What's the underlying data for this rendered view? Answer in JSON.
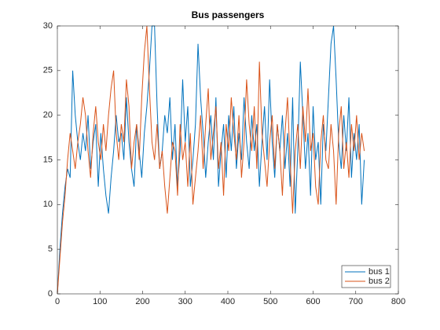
{
  "chart_data": {
    "type": "line",
    "title": "Bus passengers",
    "x": [
      0,
      6,
      12,
      18,
      24,
      30,
      36,
      42,
      48,
      54,
      60,
      66,
      72,
      78,
      84,
      90,
      96,
      102,
      108,
      114,
      120,
      126,
      132,
      138,
      144,
      150,
      156,
      162,
      168,
      174,
      180,
      186,
      192,
      198,
      204,
      210,
      216,
      222,
      228,
      234,
      240,
      246,
      252,
      258,
      264,
      270,
      276,
      282,
      288,
      294,
      300,
      306,
      312,
      318,
      324,
      330,
      336,
      342,
      348,
      354,
      360,
      366,
      372,
      378,
      384,
      390,
      396,
      402,
      408,
      414,
      420,
      426,
      432,
      438,
      444,
      450,
      456,
      462,
      468,
      474,
      480,
      486,
      492,
      498,
      504,
      510,
      516,
      522,
      528,
      534,
      540,
      546,
      552,
      558,
      564,
      570,
      576,
      582,
      588,
      594,
      600,
      606,
      612,
      618,
      624,
      630,
      636,
      642,
      648,
      654,
      660,
      666,
      672,
      678,
      684,
      690,
      696,
      702,
      708,
      714,
      720
    ],
    "series": [
      {
        "name": "bus 1",
        "color": "#0072bd",
        "values": [
          0,
          5,
          9,
          12,
          14,
          13,
          25,
          20,
          17,
          15,
          18,
          16,
          20,
          14,
          17,
          19,
          12,
          18,
          14,
          11,
          9,
          13,
          16,
          20,
          17,
          18,
          15,
          22,
          17,
          14,
          12,
          19,
          16,
          13,
          18,
          21,
          25,
          30,
          30,
          21,
          14,
          16,
          20,
          18,
          22,
          15,
          19,
          12,
          16,
          24,
          17,
          21,
          12,
          15,
          19,
          28,
          22,
          18,
          13,
          17,
          20,
          15,
          22,
          12,
          16,
          19,
          13,
          20,
          16,
          21,
          14,
          18,
          15,
          22,
          17,
          14,
          20,
          16,
          19,
          12,
          17,
          21,
          15,
          24,
          17,
          13,
          19,
          16,
          20,
          14,
          18,
          12,
          22,
          9,
          16,
          26,
          20,
          14,
          18,
          11,
          21,
          15,
          17,
          10,
          19,
          16,
          22,
          28,
          30,
          24,
          17,
          14,
          20,
          16,
          22,
          13,
          18,
          15,
          19,
          10,
          15
        ]
      },
      {
        "name": "bus 2",
        "color": "#d95319",
        "values": [
          0,
          4,
          8,
          11,
          15,
          18,
          16,
          14,
          17,
          19,
          22,
          20,
          16,
          13,
          18,
          21,
          17,
          15,
          19,
          16,
          20,
          23,
          25,
          18,
          15,
          19,
          17,
          24,
          21,
          14,
          17,
          19,
          15,
          22,
          27,
          30,
          23,
          17,
          15,
          19,
          14,
          16,
          12,
          9,
          13,
          17,
          16,
          11,
          19,
          15,
          17,
          12,
          18,
          10,
          13,
          16,
          20,
          14,
          19,
          23,
          15,
          18,
          21,
          14,
          17,
          11,
          19,
          16,
          22,
          18,
          15,
          20,
          13,
          17,
          24,
          19,
          16,
          21,
          14,
          26,
          18,
          15,
          12,
          17,
          20,
          14,
          19,
          16,
          11,
          18,
          22,
          15,
          9,
          16,
          19,
          14,
          21,
          17,
          23,
          16,
          18,
          12,
          10,
          17,
          20,
          15,
          14,
          19,
          16,
          10,
          18,
          21,
          14,
          17,
          13,
          19,
          16,
          20,
          15,
          18,
          16
        ]
      }
    ],
    "xlim": [
      0,
      800
    ],
    "xticks": [
      0,
      100,
      200,
      300,
      400,
      500,
      600,
      700,
      800
    ],
    "ylim": [
      0,
      30
    ],
    "yticks": [
      0,
      5,
      10,
      15,
      20,
      25,
      30
    ],
    "legend": "southeast"
  }
}
